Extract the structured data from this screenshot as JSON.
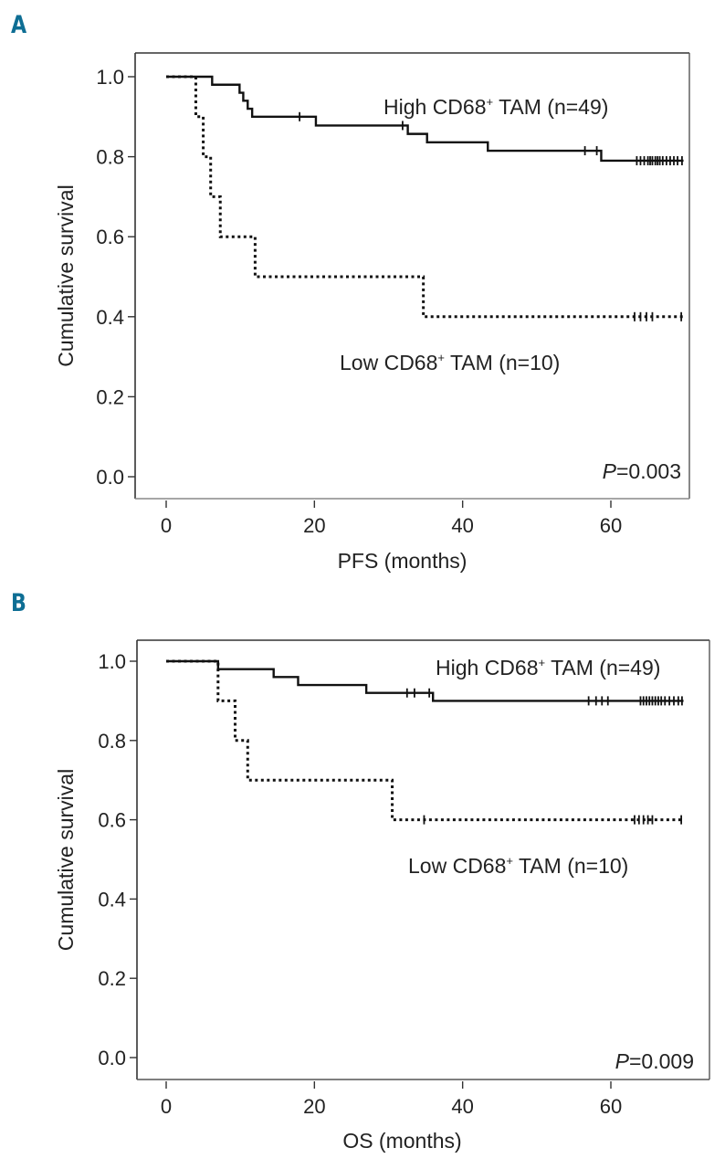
{
  "chart_data": [
    {
      "type": "line",
      "subtype": "kaplan-meier",
      "panel": "A",
      "title": "",
      "xlabel": "PFS (months)",
      "ylabel": "Cumulative survival",
      "xlim": [
        -1.5,
        72
      ],
      "ylim": [
        -0.05,
        1.05
      ],
      "xticks": [
        0,
        20,
        40,
        60
      ],
      "yticks": [
        0.0,
        0.2,
        0.4,
        0.6,
        0.8,
        1.0
      ],
      "xtick_labels": [
        "0",
        "20",
        "40",
        "60"
      ],
      "ytick_labels": [
        "0.0",
        "0.2",
        "0.4",
        "0.6",
        "0.8",
        "1.0"
      ],
      "grid": false,
      "p_value_label": "P",
      "p_value_text": "=0.003",
      "series": [
        {
          "name": "High CD68+ TAM (n=49)",
          "label_main": "High CD68",
          "label_sup": "+",
          "label_rest": " TAM (n=49)",
          "style": "solid",
          "steps": [
            [
              0,
              1.0
            ],
            [
              6.2,
              0.98
            ],
            [
              9.9,
              0.96
            ],
            [
              10.4,
              0.94
            ],
            [
              11.0,
              0.92
            ],
            [
              11.6,
              0.9
            ],
            [
              20.2,
              0.878
            ],
            [
              32.6,
              0.857
            ],
            [
              35.2,
              0.836
            ],
            [
              43.4,
              0.815
            ],
            [
              58.7,
              0.79
            ]
          ],
          "end": 69.8,
          "censored": [
            18.0,
            31.9,
            56.5,
            58.1,
            63.5,
            64.0,
            64.5,
            65.0,
            65.3,
            65.6,
            66.0,
            66.3,
            66.6,
            67.0,
            67.5,
            68.0,
            68.5,
            69.0,
            69.6
          ]
        },
        {
          "name": "Low CD68+ TAM (n=10)",
          "label_main": "Low CD68",
          "label_sup": "+",
          "label_rest": " TAM (n=10)",
          "style": "dotted",
          "steps": [
            [
              0,
              1.0
            ],
            [
              4.0,
              0.9
            ],
            [
              5.0,
              0.8
            ],
            [
              6.0,
              0.7
            ],
            [
              7.3,
              0.6
            ],
            [
              12.0,
              0.5
            ],
            [
              34.7,
              0.4
            ]
          ],
          "end": 69.8,
          "censored": [
            63.2,
            64.0,
            64.8,
            65.6,
            69.5
          ]
        }
      ]
    },
    {
      "type": "line",
      "subtype": "kaplan-meier",
      "panel": "B",
      "title": "",
      "xlabel": "OS (months)",
      "ylabel": "Cumulative survival",
      "xlim": [
        -1.5,
        72
      ],
      "ylim": [
        -0.05,
        1.05
      ],
      "xticks": [
        0,
        20,
        40,
        60
      ],
      "yticks": [
        0.0,
        0.2,
        0.4,
        0.6,
        0.8,
        1.0
      ],
      "xtick_labels": [
        "0",
        "20",
        "40",
        "60"
      ],
      "ytick_labels": [
        "0.0",
        "0.2",
        "0.4",
        "0.6",
        "0.8",
        "1.0"
      ],
      "grid": false,
      "p_value_label": "P",
      "p_value_text": "=0.009",
      "series": [
        {
          "name": "High CD68+ TAM (n=49)",
          "label_main": "High CD68",
          "label_sup": "+",
          "label_rest": " TAM (n=49)",
          "style": "solid",
          "steps": [
            [
              0,
              1.0
            ],
            [
              7.0,
              0.98
            ],
            [
              14.5,
              0.96
            ],
            [
              17.8,
              0.94
            ],
            [
              27.0,
              0.92
            ],
            [
              36.0,
              0.9
            ]
          ],
          "end": 69.8,
          "censored": [
            32.5,
            33.5,
            35.5,
            57.0,
            58.0,
            58.8,
            59.6,
            64.0,
            64.4,
            64.8,
            65.2,
            65.6,
            66.0,
            66.4,
            66.8,
            67.3,
            67.9,
            68.5,
            69.1,
            69.6
          ]
        },
        {
          "name": "Low CD68+ TAM (n=10)",
          "label_main": "Low CD68",
          "label_sup": "+",
          "label_rest": " TAM (n=10)",
          "style": "dotted",
          "steps": [
            [
              0,
              1.0
            ],
            [
              7.0,
              0.9
            ],
            [
              9.3,
              0.8
            ],
            [
              11.0,
              0.7
            ],
            [
              30.5,
              0.6
            ]
          ],
          "end": 69.8,
          "censored": [
            34.8,
            63.2,
            63.8,
            64.4,
            65.0,
            65.6,
            69.5
          ]
        }
      ]
    }
  ],
  "panels": [
    {
      "letter": "A"
    },
    {
      "letter": "B"
    }
  ]
}
